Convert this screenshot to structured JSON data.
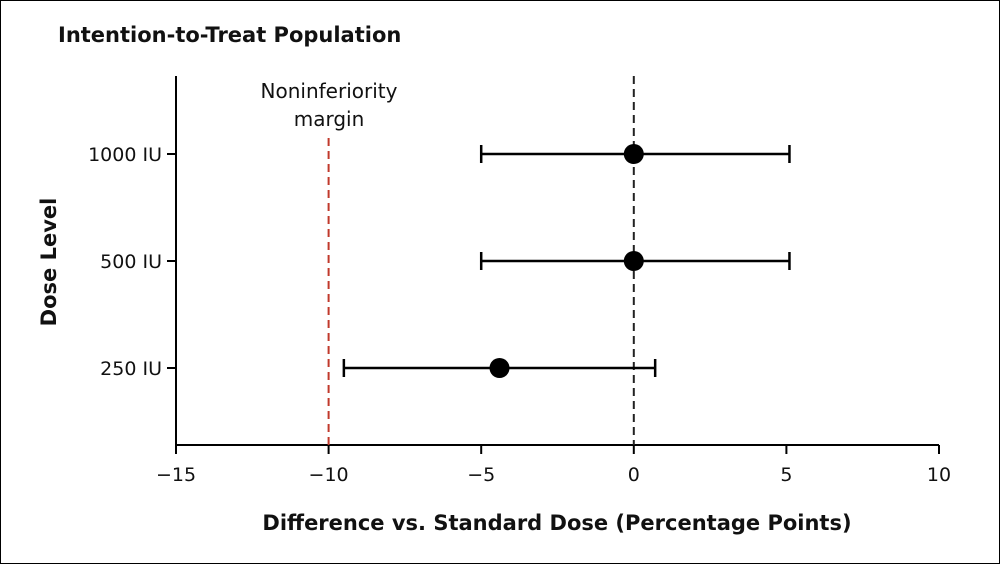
{
  "chart_data": {
    "type": "forest",
    "title": "Intention-to-Treat Population",
    "xlabel": "Difference vs. Standard Dose (Percentage Points)",
    "ylabel": "Dose Level",
    "xlim": [
      -15,
      10
    ],
    "xticks": [
      -15,
      -10,
      -5,
      0,
      5,
      10
    ],
    "xtick_labels": [
      "−15",
      "−10",
      "−5",
      "0",
      "5",
      "10"
    ],
    "categories": [
      "1000 IU",
      "500 IU",
      "250 IU"
    ],
    "series": [
      {
        "name": "1000 IU",
        "estimate": 0.0,
        "ci_low": -5.0,
        "ci_high": 5.1
      },
      {
        "name": "500 IU",
        "estimate": 0.0,
        "ci_low": -5.0,
        "ci_high": 5.1
      },
      {
        "name": "250 IU",
        "estimate": -4.4,
        "ci_low": -9.5,
        "ci_high": 0.7
      }
    ],
    "reference_line": {
      "x": 0,
      "color": "#222222"
    },
    "noninferiority_margin": {
      "x": -10,
      "label_line1": "Noninferiority",
      "label_line2": "margin",
      "color": "#c0392b"
    }
  },
  "colors": {
    "marker": "#000000",
    "axis": "#000000",
    "margin_line": "#c0392b",
    "reference_line": "#222222"
  }
}
